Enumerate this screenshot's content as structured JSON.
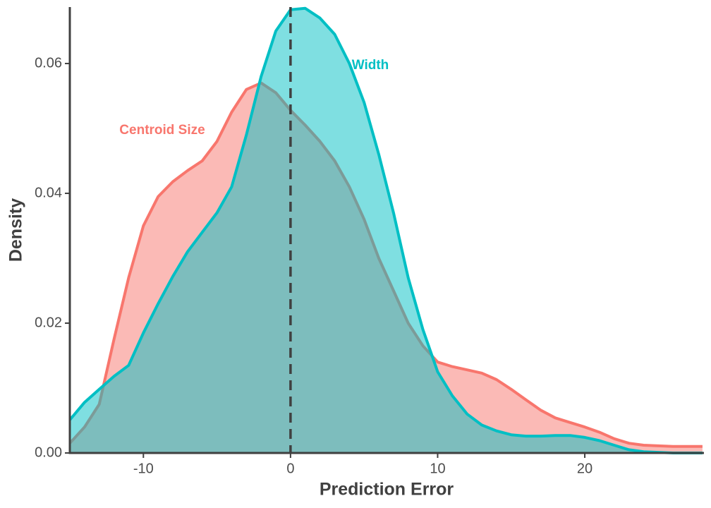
{
  "chart_data": {
    "type": "density",
    "x_label": "Prediction Error",
    "y_label": "Density",
    "x": [
      -15,
      -14,
      -13,
      -12,
      -11,
      -10,
      -9,
      -8,
      -7,
      -6,
      -5,
      -4,
      -3,
      -2,
      -1,
      0,
      1,
      2,
      3,
      4,
      5,
      6,
      7,
      8,
      9,
      10,
      11,
      12,
      13,
      14,
      15,
      16,
      17,
      18,
      19,
      20,
      21,
      22,
      23,
      24,
      25,
      26,
      27,
      28
    ],
    "series": [
      {
        "name": "Centroid Size",
        "color": "#f8766d",
        "values": [
          0.0015,
          0.004,
          0.0075,
          0.0175,
          0.027,
          0.035,
          0.0395,
          0.0418,
          0.0435,
          0.045,
          0.048,
          0.0525,
          0.056,
          0.057,
          0.0555,
          0.0528,
          0.0505,
          0.048,
          0.045,
          0.041,
          0.036,
          0.03,
          0.025,
          0.02,
          0.0165,
          0.014,
          0.0133,
          0.0128,
          0.0123,
          0.0113,
          0.0098,
          0.0082,
          0.0066,
          0.0054,
          0.0047,
          0.004,
          0.0032,
          0.0022,
          0.0015,
          0.0012,
          0.0011,
          0.001,
          0.001,
          0.001
        ]
      },
      {
        "name": "Width",
        "color": "#00bfc4",
        "values": [
          0.0051,
          0.0078,
          0.0098,
          0.0118,
          0.0135,
          0.0185,
          0.023,
          0.0272,
          0.031,
          0.034,
          0.037,
          0.041,
          0.049,
          0.058,
          0.065,
          0.0683,
          0.0685,
          0.067,
          0.0645,
          0.06,
          0.054,
          0.046,
          0.037,
          0.027,
          0.019,
          0.0125,
          0.0088,
          0.006,
          0.0043,
          0.0034,
          0.0028,
          0.0026,
          0.0026,
          0.0027,
          0.0027,
          0.0024,
          0.0019,
          0.0012,
          0.0005,
          0.0002,
          0.0001,
          0,
          0,
          0
        ]
      }
    ],
    "vline": 0,
    "xlim": [
      -15,
      28.1
    ],
    "xticks": [
      -10,
      0,
      10,
      20
    ],
    "ylim": [
      0,
      0.0687
    ],
    "yticks": [
      {
        "value": 0,
        "label": "0.00"
      },
      0.02,
      0.04,
      0.06
    ],
    "grid": false
  }
}
